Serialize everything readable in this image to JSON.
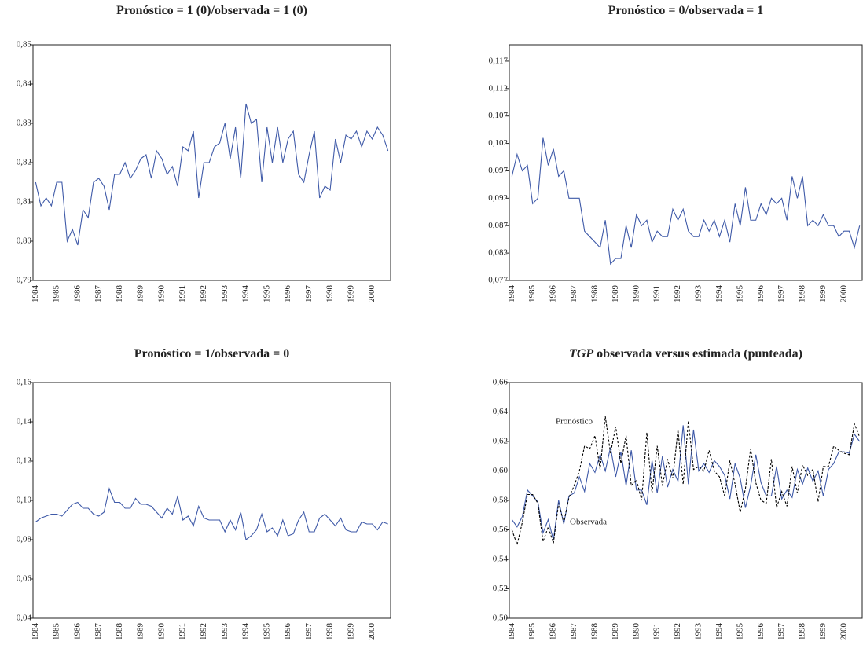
{
  "chart_data": [
    {
      "type": "line",
      "title": "Pronóstico = 1 (0)/observada = 1 (0)",
      "categories": [
        "1984",
        null,
        null,
        null,
        "1985",
        null,
        null,
        null,
        "1986",
        null,
        null,
        null,
        "1987",
        null,
        null,
        null,
        "1988",
        null,
        null,
        null,
        "1989",
        null,
        null,
        null,
        "1990",
        null,
        null,
        null,
        "1991",
        null,
        null,
        null,
        "1992",
        null,
        null,
        null,
        "1993",
        null,
        null,
        null,
        "1994",
        null,
        null,
        null,
        "1995",
        null,
        null,
        null,
        "1996",
        null,
        null,
        null,
        "1997",
        null,
        null,
        null,
        "1998",
        null,
        null,
        null,
        "1999",
        null,
        null,
        null,
        "2000",
        null,
        null,
        null
      ],
      "values": [
        0.815,
        0.809,
        0.811,
        0.809,
        0.815,
        0.815,
        0.8,
        0.803,
        0.799,
        0.808,
        0.806,
        0.815,
        0.816,
        0.814,
        0.808,
        0.817,
        0.817,
        0.82,
        0.816,
        0.818,
        0.821,
        0.822,
        0.816,
        0.823,
        0.821,
        0.817,
        0.819,
        0.814,
        0.824,
        0.823,
        0.828,
        0.811,
        0.82,
        0.82,
        0.824,
        0.825,
        0.83,
        0.821,
        0.829,
        0.816,
        0.835,
        0.83,
        0.831,
        0.815,
        0.829,
        0.82,
        0.829,
        0.82,
        0.826,
        0.828,
        0.817,
        0.815,
        0.822,
        0.828,
        0.811,
        0.814,
        0.813,
        0.826,
        0.82,
        0.827,
        0.826,
        0.828,
        0.824,
        0.828,
        0.826,
        0.829,
        0.827,
        0.823
      ],
      "color": "#3f5aa8",
      "ylim": [
        0.79,
        0.85
      ],
      "yticks": [
        {
          "value": 0.79,
          "label": "0,79"
        },
        {
          "value": 0.8,
          "label": "0,80"
        },
        {
          "value": 0.81,
          "label": "0,81"
        },
        {
          "value": 0.82,
          "label": "0,82"
        },
        {
          "value": 0.83,
          "label": "0,83"
        },
        {
          "value": 0.84,
          "label": "0,84"
        },
        {
          "value": 0.85,
          "label": "0,85"
        }
      ]
    },
    {
      "type": "line",
      "title": "Pronóstico = 0/observada = 1",
      "categories": [
        "1984",
        null,
        null,
        null,
        "1985",
        null,
        null,
        null,
        "1986",
        null,
        null,
        null,
        "1987",
        null,
        null,
        null,
        "1988",
        null,
        null,
        null,
        "1989",
        null,
        null,
        null,
        "1990",
        null,
        null,
        null,
        "1991",
        null,
        null,
        null,
        "1992",
        null,
        null,
        null,
        "1993",
        null,
        null,
        null,
        "1994",
        null,
        null,
        null,
        "1995",
        null,
        null,
        null,
        "1996",
        null,
        null,
        null,
        "1997",
        null,
        null,
        null,
        "1998",
        null,
        null,
        null,
        "1999",
        null,
        null,
        null,
        "2000",
        null,
        null,
        null
      ],
      "values": [
        0.096,
        0.1,
        0.097,
        0.098,
        0.091,
        0.092,
        0.103,
        0.098,
        0.101,
        0.096,
        0.097,
        0.092,
        0.092,
        0.092,
        0.086,
        0.085,
        0.084,
        0.083,
        0.088,
        0.08,
        0.081,
        0.081,
        0.087,
        0.083,
        0.089,
        0.087,
        0.088,
        0.084,
        0.086,
        0.085,
        0.085,
        0.09,
        0.088,
        0.09,
        0.086,
        0.085,
        0.085,
        0.088,
        0.086,
        0.088,
        0.085,
        0.088,
        0.084,
        0.091,
        0.087,
        0.094,
        0.088,
        0.088,
        0.091,
        0.089,
        0.092,
        0.091,
        0.092,
        0.088,
        0.096,
        0.092,
        0.096,
        0.087,
        0.088,
        0.087,
        0.089,
        0.087,
        0.087,
        0.085,
        0.086,
        0.086,
        0.083,
        0.087
      ],
      "color": "#3f5aa8",
      "ylim": [
        0.077,
        0.12
      ],
      "yticks": [
        {
          "value": 0.077,
          "label": "0,077"
        },
        {
          "value": 0.082,
          "label": "0,082"
        },
        {
          "value": 0.087,
          "label": "0,087"
        },
        {
          "value": 0.092,
          "label": "0,092"
        },
        {
          "value": 0.097,
          "label": "0,097"
        },
        {
          "value": 0.102,
          "label": "0,102"
        },
        {
          "value": 0.107,
          "label": "0,107"
        },
        {
          "value": 0.112,
          "label": "0,112"
        },
        {
          "value": 0.117,
          "label": "0,117"
        }
      ]
    },
    {
      "type": "line",
      "title": "Pronóstico = 1/observada = 0",
      "categories": [
        "1984",
        null,
        null,
        null,
        "1985",
        null,
        null,
        null,
        "1986",
        null,
        null,
        null,
        "1987",
        null,
        null,
        null,
        "1988",
        null,
        null,
        null,
        "1989",
        null,
        null,
        null,
        "1990",
        null,
        null,
        null,
        "1991",
        null,
        null,
        null,
        "1992",
        null,
        null,
        null,
        "1993",
        null,
        null,
        null,
        "1994",
        null,
        null,
        null,
        "1995",
        null,
        null,
        null,
        "1996",
        null,
        null,
        null,
        "1997",
        null,
        null,
        null,
        "1998",
        null,
        null,
        null,
        "1999",
        null,
        null,
        null,
        "2000",
        null,
        null,
        null
      ],
      "values": [
        0.089,
        0.091,
        0.092,
        0.093,
        0.093,
        0.092,
        0.095,
        0.098,
        0.099,
        0.096,
        0.096,
        0.093,
        0.092,
        0.094,
        0.106,
        0.099,
        0.099,
        0.096,
        0.096,
        0.101,
        0.098,
        0.098,
        0.097,
        0.094,
        0.091,
        0.096,
        0.093,
        0.102,
        0.09,
        0.092,
        0.087,
        0.097,
        0.091,
        0.09,
        0.09,
        0.09,
        0.084,
        0.09,
        0.085,
        0.094,
        0.08,
        0.082,
        0.085,
        0.093,
        0.084,
        0.086,
        0.082,
        0.09,
        0.082,
        0.083,
        0.09,
        0.094,
        0.084,
        0.084,
        0.091,
        0.093,
        0.09,
        0.087,
        0.091,
        0.085,
        0.084,
        0.084,
        0.089,
        0.088,
        0.088,
        0.085,
        0.089,
        0.088
      ],
      "color": "#3f5aa8",
      "ylim": [
        0.04,
        0.16
      ],
      "yticks": [
        {
          "value": 0.04,
          "label": "0,04"
        },
        {
          "value": 0.06,
          "label": "0,06"
        },
        {
          "value": 0.08,
          "label": "0,08"
        },
        {
          "value": 0.1,
          "label": "0,10"
        },
        {
          "value": 0.12,
          "label": "0,12"
        },
        {
          "value": 0.14,
          "label": "0,14"
        },
        {
          "value": 0.16,
          "label": "0,16"
        }
      ]
    },
    {
      "type": "line",
      "title_emphasis": "TGP",
      "title": "observada versus estimada (punteada)",
      "categories": [
        "1984",
        null,
        null,
        null,
        "1985",
        null,
        null,
        null,
        "1986",
        null,
        null,
        null,
        "1987",
        null,
        null,
        null,
        "1988",
        null,
        null,
        null,
        "1989",
        null,
        null,
        null,
        "1990",
        null,
        null,
        null,
        "1991",
        null,
        null,
        null,
        "1992",
        null,
        null,
        null,
        "1993",
        null,
        null,
        null,
        "1994",
        null,
        null,
        null,
        "1995",
        null,
        null,
        null,
        "1996",
        null,
        null,
        null,
        "1997",
        null,
        null,
        null,
        "1998",
        null,
        null,
        null,
        "1999",
        null,
        null,
        null,
        "2000",
        null,
        null,
        null
      ],
      "series": [
        {
          "name": "Observada",
          "color": "#3f5aa8",
          "line_style": "solid",
          "values": [
            0.567,
            0.562,
            0.569,
            0.587,
            0.583,
            0.579,
            0.558,
            0.567,
            0.553,
            0.58,
            0.564,
            0.583,
            0.585,
            0.596,
            0.586,
            0.605,
            0.599,
            0.611,
            0.6,
            0.616,
            0.596,
            0.613,
            0.59,
            0.614,
            0.587,
            0.587,
            0.577,
            0.607,
            0.585,
            0.61,
            0.589,
            0.601,
            0.593,
            0.631,
            0.591,
            0.628,
            0.6,
            0.605,
            0.599,
            0.607,
            0.603,
            0.597,
            0.581,
            0.605,
            0.595,
            0.575,
            0.59,
            0.611,
            0.592,
            0.583,
            0.583,
            0.603,
            0.581,
            0.587,
            0.582,
            0.601,
            0.591,
            0.602,
            0.593,
            0.6,
            0.583,
            0.601,
            0.605,
            0.613,
            0.613,
            0.612,
            0.625,
            0.62
          ]
        },
        {
          "name": "Pronóstico",
          "color": "#000000",
          "line_style": "dashed",
          "values": [
            0.56,
            0.55,
            0.565,
            0.584,
            0.584,
            0.578,
            0.552,
            0.562,
            0.551,
            0.578,
            0.565,
            0.582,
            0.59,
            0.6,
            0.617,
            0.615,
            0.624,
            0.601,
            0.637,
            0.612,
            0.63,
            0.605,
            0.624,
            0.59,
            0.594,
            0.58,
            0.626,
            0.585,
            0.617,
            0.59,
            0.608,
            0.595,
            0.628,
            0.591,
            0.634,
            0.601,
            0.603,
            0.6,
            0.614,
            0.6,
            0.596,
            0.583,
            0.607,
            0.591,
            0.572,
            0.588,
            0.615,
            0.592,
            0.58,
            0.578,
            0.608,
            0.575,
            0.586,
            0.576,
            0.603,
            0.585,
            0.604,
            0.597,
            0.601,
            0.579,
            0.603,
            0.603,
            0.617,
            0.614,
            0.612,
            0.611,
            0.632,
            0.623
          ]
        }
      ],
      "ylim": [
        0.5,
        0.66
      ],
      "yticks": [
        {
          "value": 0.5,
          "label": "0,50"
        },
        {
          "value": 0.52,
          "label": "0,52"
        },
        {
          "value": 0.54,
          "label": "0,54"
        },
        {
          "value": 0.56,
          "label": "0,56"
        },
        {
          "value": 0.58,
          "label": "0,58"
        },
        {
          "value": 0.6,
          "label": "0,60"
        },
        {
          "value": 0.62,
          "label": "0,62"
        },
        {
          "value": 0.64,
          "label": "0,64"
        },
        {
          "value": 0.66,
          "label": "0,66"
        }
      ]
    }
  ]
}
